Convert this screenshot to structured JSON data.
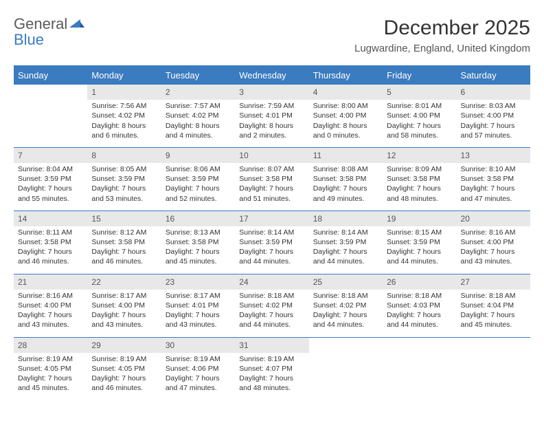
{
  "branding": {
    "word1": "General",
    "word2": "Blue",
    "word1_color": "#5a5a5a",
    "word2_color": "#3b7bbf"
  },
  "title": "December 2025",
  "subtitle": "Lugwardine, England, United Kingdom",
  "colors": {
    "header_bg": "#3b7bbf",
    "header_text": "#ffffff",
    "daynum_bg": "#e8e8e8",
    "border": "#3b7bbf",
    "body_text": "#333333",
    "background": "#ffffff"
  },
  "typography": {
    "title_fontsize": 30,
    "subtitle_fontsize": 15,
    "header_fontsize": 13,
    "cell_fontsize": 10.5,
    "daynum_fontsize": 12
  },
  "weekdays": [
    "Sunday",
    "Monday",
    "Tuesday",
    "Wednesday",
    "Thursday",
    "Friday",
    "Saturday"
  ],
  "grid": {
    "rows": 5,
    "cols": 7,
    "start_offset": 1,
    "days_in_month": 31
  },
  "days": [
    {
      "n": 1,
      "sunrise": "7:56 AM",
      "sunset": "4:02 PM",
      "daylight": "8 hours and 6 minutes."
    },
    {
      "n": 2,
      "sunrise": "7:57 AM",
      "sunset": "4:02 PM",
      "daylight": "8 hours and 4 minutes."
    },
    {
      "n": 3,
      "sunrise": "7:59 AM",
      "sunset": "4:01 PM",
      "daylight": "8 hours and 2 minutes."
    },
    {
      "n": 4,
      "sunrise": "8:00 AM",
      "sunset": "4:00 PM",
      "daylight": "8 hours and 0 minutes."
    },
    {
      "n": 5,
      "sunrise": "8:01 AM",
      "sunset": "4:00 PM",
      "daylight": "7 hours and 58 minutes."
    },
    {
      "n": 6,
      "sunrise": "8:03 AM",
      "sunset": "4:00 PM",
      "daylight": "7 hours and 57 minutes."
    },
    {
      "n": 7,
      "sunrise": "8:04 AM",
      "sunset": "3:59 PM",
      "daylight": "7 hours and 55 minutes."
    },
    {
      "n": 8,
      "sunrise": "8:05 AM",
      "sunset": "3:59 PM",
      "daylight": "7 hours and 53 minutes."
    },
    {
      "n": 9,
      "sunrise": "8:06 AM",
      "sunset": "3:59 PM",
      "daylight": "7 hours and 52 minutes."
    },
    {
      "n": 10,
      "sunrise": "8:07 AM",
      "sunset": "3:58 PM",
      "daylight": "7 hours and 51 minutes."
    },
    {
      "n": 11,
      "sunrise": "8:08 AM",
      "sunset": "3:58 PM",
      "daylight": "7 hours and 49 minutes."
    },
    {
      "n": 12,
      "sunrise": "8:09 AM",
      "sunset": "3:58 PM",
      "daylight": "7 hours and 48 minutes."
    },
    {
      "n": 13,
      "sunrise": "8:10 AM",
      "sunset": "3:58 PM",
      "daylight": "7 hours and 47 minutes."
    },
    {
      "n": 14,
      "sunrise": "8:11 AM",
      "sunset": "3:58 PM",
      "daylight": "7 hours and 46 minutes."
    },
    {
      "n": 15,
      "sunrise": "8:12 AM",
      "sunset": "3:58 PM",
      "daylight": "7 hours and 46 minutes."
    },
    {
      "n": 16,
      "sunrise": "8:13 AM",
      "sunset": "3:58 PM",
      "daylight": "7 hours and 45 minutes."
    },
    {
      "n": 17,
      "sunrise": "8:14 AM",
      "sunset": "3:59 PM",
      "daylight": "7 hours and 44 minutes."
    },
    {
      "n": 18,
      "sunrise": "8:14 AM",
      "sunset": "3:59 PM",
      "daylight": "7 hours and 44 minutes."
    },
    {
      "n": 19,
      "sunrise": "8:15 AM",
      "sunset": "3:59 PM",
      "daylight": "7 hours and 44 minutes."
    },
    {
      "n": 20,
      "sunrise": "8:16 AM",
      "sunset": "4:00 PM",
      "daylight": "7 hours and 43 minutes."
    },
    {
      "n": 21,
      "sunrise": "8:16 AM",
      "sunset": "4:00 PM",
      "daylight": "7 hours and 43 minutes."
    },
    {
      "n": 22,
      "sunrise": "8:17 AM",
      "sunset": "4:00 PM",
      "daylight": "7 hours and 43 minutes."
    },
    {
      "n": 23,
      "sunrise": "8:17 AM",
      "sunset": "4:01 PM",
      "daylight": "7 hours and 43 minutes."
    },
    {
      "n": 24,
      "sunrise": "8:18 AM",
      "sunset": "4:02 PM",
      "daylight": "7 hours and 44 minutes."
    },
    {
      "n": 25,
      "sunrise": "8:18 AM",
      "sunset": "4:02 PM",
      "daylight": "7 hours and 44 minutes."
    },
    {
      "n": 26,
      "sunrise": "8:18 AM",
      "sunset": "4:03 PM",
      "daylight": "7 hours and 44 minutes."
    },
    {
      "n": 27,
      "sunrise": "8:18 AM",
      "sunset": "4:04 PM",
      "daylight": "7 hours and 45 minutes."
    },
    {
      "n": 28,
      "sunrise": "8:19 AM",
      "sunset": "4:05 PM",
      "daylight": "7 hours and 45 minutes."
    },
    {
      "n": 29,
      "sunrise": "8:19 AM",
      "sunset": "4:05 PM",
      "daylight": "7 hours and 46 minutes."
    },
    {
      "n": 30,
      "sunrise": "8:19 AM",
      "sunset": "4:06 PM",
      "daylight": "7 hours and 47 minutes."
    },
    {
      "n": 31,
      "sunrise": "8:19 AM",
      "sunset": "4:07 PM",
      "daylight": "7 hours and 48 minutes."
    }
  ],
  "labels": {
    "sunrise": "Sunrise: ",
    "sunset": "Sunset: ",
    "daylight": "Daylight: "
  }
}
